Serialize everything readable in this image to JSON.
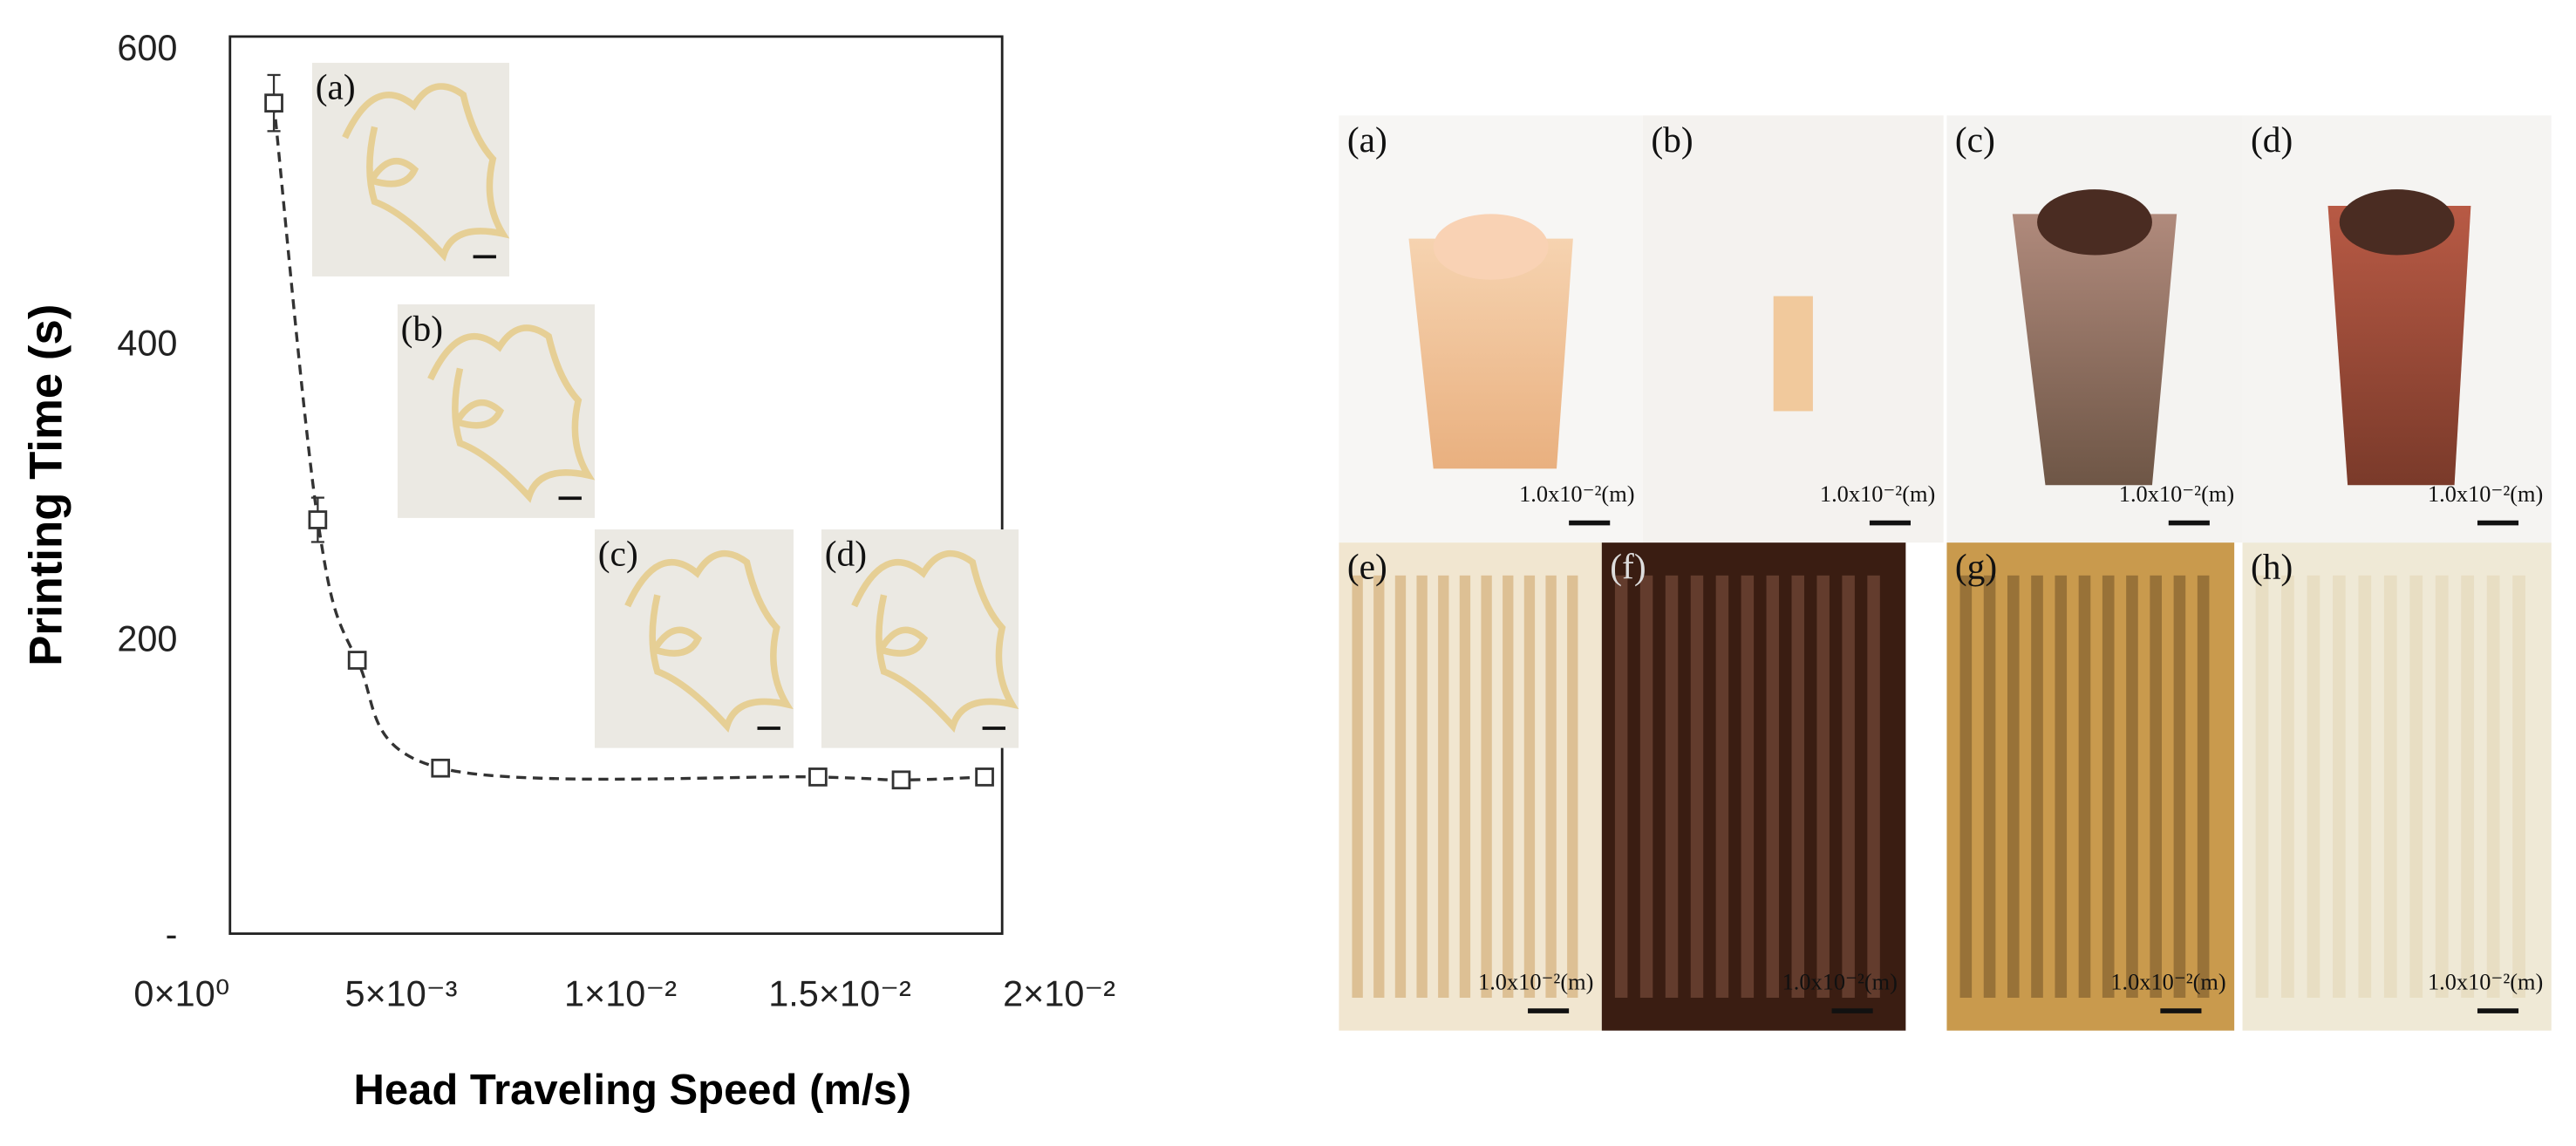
{
  "chart_data": {
    "type": "scatter",
    "x_label": "Head Traveling Speed (m/s)",
    "y_label": "Printing Time (s)",
    "x": [
      0.0021,
      0.0031,
      0.004,
      0.0059,
      0.0145,
      0.0164,
      0.0183
    ],
    "values": [
      562,
      280,
      185,
      112,
      106,
      104,
      106
    ],
    "errors": [
      19,
      15,
      5,
      3,
      3,
      3,
      3
    ],
    "color": "#333333",
    "marker": "square",
    "line": "dashed",
    "xlim": [
      0.0011,
      0.0187
    ],
    "ylim": [
      0,
      607
    ],
    "xticks": [
      {
        "value": 0,
        "label": "0×10⁰"
      },
      {
        "value": 0.005,
        "label": "5×10⁻³"
      },
      {
        "value": 0.01,
        "label": "1×10⁻²"
      },
      {
        "value": 0.015,
        "label": "1.5×10⁻²"
      },
      {
        "value": 0.02,
        "label": "2×10⁻²"
      }
    ],
    "yticks": [
      {
        "value": 0,
        "label": "-"
      },
      200,
      400,
      600
    ],
    "insets": [
      "(a)",
      "(b)",
      "(c)",
      "(d)"
    ]
  },
  "photo_panels": [
    {
      "label": "(a)",
      "scale": "1.0x10⁻²(m)"
    },
    {
      "label": "(b)",
      "scale": "1.0x10⁻²(m)"
    },
    {
      "label": "(c)",
      "scale": "1.0x10⁻²(m)"
    },
    {
      "label": "(d)",
      "scale": "1.0x10⁻²(m)"
    },
    {
      "label": "(e)",
      "scale": "1.0x10⁻²(m)"
    },
    {
      "label": "(f)",
      "scale": "1.0x10⁻²(m)"
    },
    {
      "label": "(g)",
      "scale": "1.0x10⁻²(m)"
    },
    {
      "label": "(h)",
      "scale": "1.0x10⁻²(m)"
    }
  ]
}
